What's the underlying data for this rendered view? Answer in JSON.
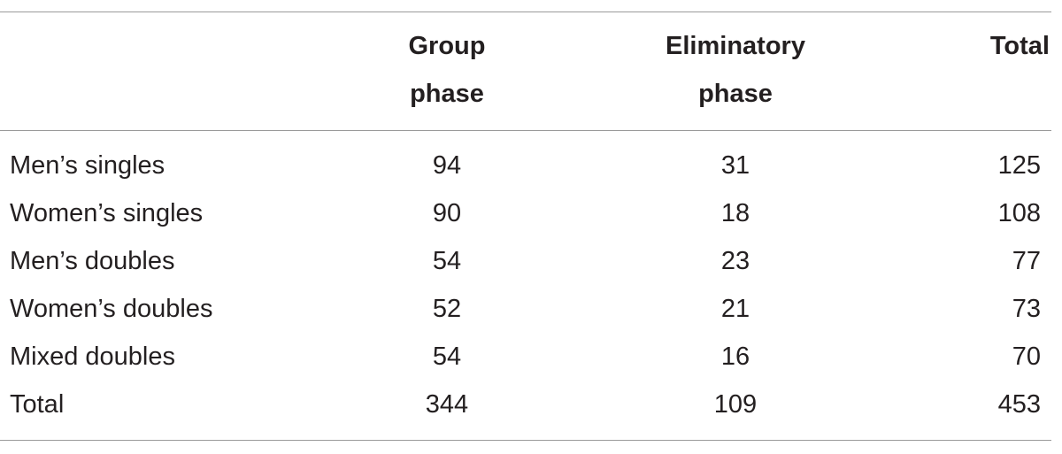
{
  "table": {
    "headers": {
      "label": "",
      "group": [
        "Group",
        "phase"
      ],
      "eliminatory": [
        "Eliminatory",
        "phase"
      ],
      "total": "Total"
    },
    "rows": [
      {
        "label": "Men’s singles",
        "group": "94",
        "eliminatory": "31",
        "total": "125"
      },
      {
        "label": "Women’s singles",
        "group": "90",
        "eliminatory": "18",
        "total": "108"
      },
      {
        "label": "Men’s doubles",
        "group": "54",
        "eliminatory": "23",
        "total": "77"
      },
      {
        "label": "Women’s doubles",
        "group": "52",
        "eliminatory": "21",
        "total": "73"
      },
      {
        "label": "Mixed doubles",
        "group": "54",
        "eliminatory": "16",
        "total": "70"
      },
      {
        "label": "Total",
        "group": "344",
        "eliminatory": "109",
        "total": "453"
      }
    ]
  }
}
